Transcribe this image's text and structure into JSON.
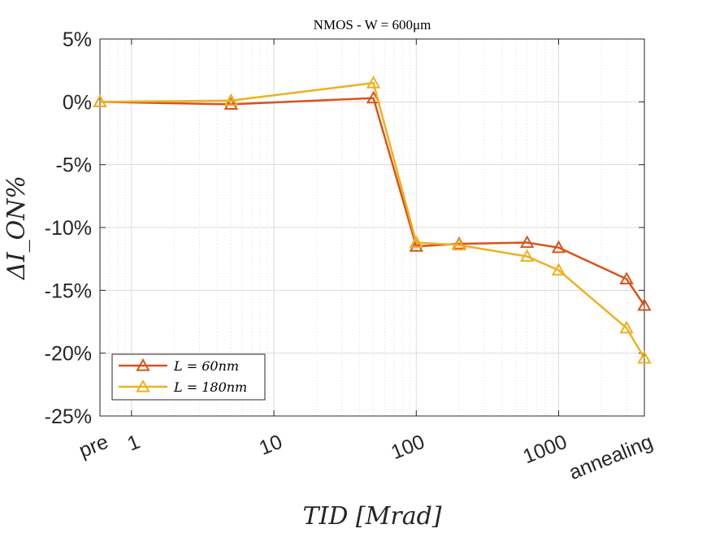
{
  "chart_data": {
    "type": "line",
    "title": "NMOS - W = 600μm",
    "xlabel": "TID [Mrad]",
    "ylabel": "ΔI_ON%",
    "x_scale": "log",
    "xlim": [
      0.6,
      4000
    ],
    "ylim": [
      -25,
      5
    ],
    "x_ticks": [
      {
        "value": 0.6,
        "label": "pre"
      },
      {
        "value": 1,
        "label": "1"
      },
      {
        "value": 10,
        "label": "10"
      },
      {
        "value": 100,
        "label": "100"
      },
      {
        "value": 1000,
        "label": "1000"
      },
      {
        "value": 4000,
        "label": "annealing"
      }
    ],
    "y_ticks": [
      {
        "value": 5,
        "label": "5%"
      },
      {
        "value": 0,
        "label": "0%"
      },
      {
        "value": -5,
        "label": "-5%"
      },
      {
        "value": -10,
        "label": "-10%"
      },
      {
        "value": -15,
        "label": "-15%"
      },
      {
        "value": -20,
        "label": "-20%"
      },
      {
        "value": -25,
        "label": "-25%"
      }
    ],
    "grid": true,
    "legend_position": "bottom-left",
    "marker": "triangle",
    "series": [
      {
        "name": "L = 60nm",
        "color": "#D95319",
        "x": [
          0.6,
          5,
          50,
          100,
          200,
          600,
          1000,
          3000,
          4000
        ],
        "y": [
          0,
          -0.2,
          0.3,
          -11.5,
          -11.3,
          -11.2,
          -11.6,
          -14.1,
          -16.2
        ]
      },
      {
        "name": "L = 180nm",
        "color": "#EDB120",
        "x": [
          0.6,
          5,
          50,
          100,
          200,
          600,
          1000,
          3000,
          4000
        ],
        "y": [
          0,
          0.1,
          1.5,
          -11.2,
          -11.4,
          -12.3,
          -13.4,
          -18.0,
          -20.4
        ]
      }
    ]
  }
}
